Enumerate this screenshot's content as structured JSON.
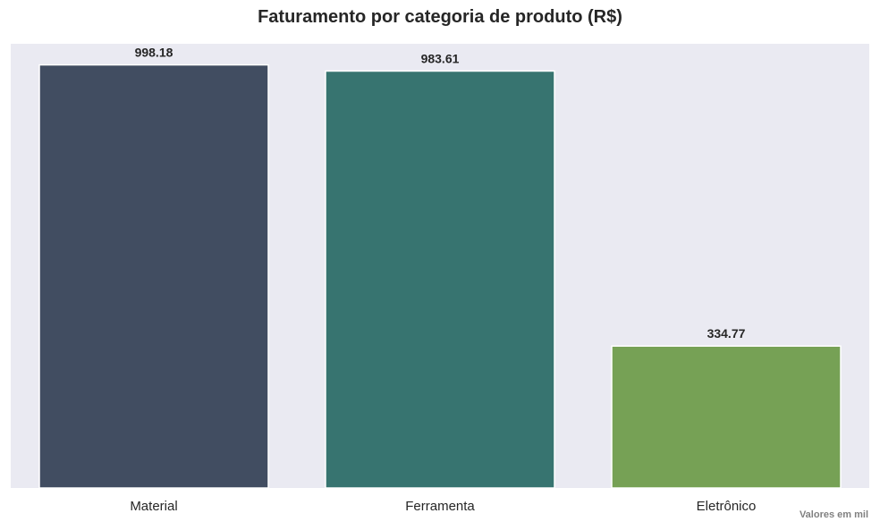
{
  "chart_data": {
    "type": "bar",
    "title": "Faturamento por categoria de produto (R$)",
    "xlabel": "",
    "ylabel": "",
    "categories": [
      "Material",
      "Ferramenta",
      "Eletrônico"
    ],
    "values": [
      998.18,
      983.61,
      334.77
    ],
    "value_labels": [
      "998.18",
      "983.61",
      "334.77"
    ],
    "colors": [
      "#414d61",
      "#377470",
      "#76a155"
    ],
    "ylim": [
      0,
      1048
    ],
    "grid": false,
    "legend": "none",
    "background": "#eaeaf2",
    "footnote": "Valores em mil"
  }
}
